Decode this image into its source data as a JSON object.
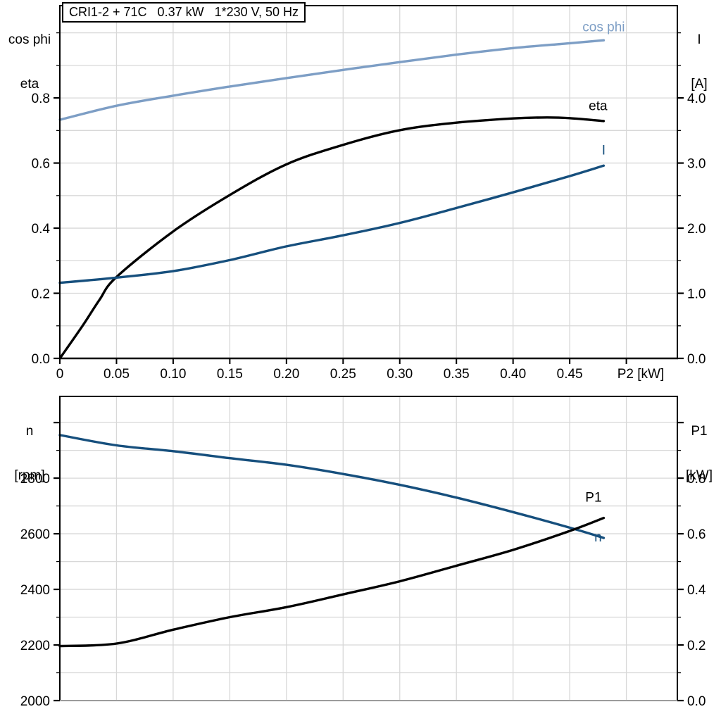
{
  "title": "CRI1-2 + 71C   0.37 kW   1*230 V, 50 Hz",
  "colors": {
    "light_blue": "#7d9ec5",
    "dark_blue": "#164f7d",
    "black": "#000000",
    "grid": "#d8d8d8",
    "frame_gray": "#9c9c9c"
  },
  "chart_data": [
    {
      "id": "top",
      "type": "line",
      "title": "CRI1-2 + 71C   0.37 kW   1*230 V, 50 Hz",
      "xlabel": "P2 [kW]",
      "grid": true,
      "x_range": [
        0,
        0.545
      ],
      "x_grid_step": 0.05,
      "x_majors": [
        {
          "v": 0,
          "label": "0"
        },
        {
          "v": 0.05,
          "label": "0.05"
        },
        {
          "v": 0.1,
          "label": "0.10"
        },
        {
          "v": 0.15,
          "label": "0.15"
        },
        {
          "v": 0.2,
          "label": "0.20"
        },
        {
          "v": 0.25,
          "label": "0.25"
        },
        {
          "v": 0.3,
          "label": "0.30"
        },
        {
          "v": 0.35,
          "label": "0.35"
        },
        {
          "v": 0.4,
          "label": "0.40"
        },
        {
          "v": 0.45,
          "label": "0.45"
        },
        {
          "v": 0.5,
          "label": ""
        }
      ],
      "left_axis": {
        "label_lines": [
          "cos phi",
          "eta"
        ],
        "range": [
          0,
          1.0835
        ],
        "minor_step": 0.1,
        "majors": [
          {
            "v": 0.0,
            "label": "0.0"
          },
          {
            "v": 0.2,
            "label": "0.2"
          },
          {
            "v": 0.4,
            "label": "0.4"
          },
          {
            "v": 0.6,
            "label": "0.6"
          },
          {
            "v": 0.8,
            "label": "0.8"
          }
        ]
      },
      "right_axis": {
        "label_lines": [
          "I",
          "[A]"
        ],
        "range": [
          0,
          5.4175
        ],
        "minor_step": 0.5,
        "majors": [
          {
            "v": 0.0,
            "label": "0.0"
          },
          {
            "v": 1.0,
            "label": "1.0"
          },
          {
            "v": 2.0,
            "label": "2.0"
          },
          {
            "v": 3.0,
            "label": "3.0"
          },
          {
            "v": 4.0,
            "label": "4.0"
          }
        ]
      },
      "series": [
        {
          "name": "cos phi",
          "axis": "left",
          "color": "light_blue",
          "label": "cos phi",
          "label_pos": [
            0.48,
            1.005
          ],
          "points": [
            [
              0,
              0.733
            ],
            [
              0.05,
              0.776
            ],
            [
              0.1,
              0.807
            ],
            [
              0.15,
              0.835
            ],
            [
              0.2,
              0.861
            ],
            [
              0.25,
              0.886
            ],
            [
              0.3,
              0.91
            ],
            [
              0.35,
              0.933
            ],
            [
              0.4,
              0.953
            ],
            [
              0.45,
              0.968
            ],
            [
              0.48,
              0.977
            ]
          ]
        },
        {
          "name": "eta",
          "axis": "left",
          "color": "black",
          "label": "eta",
          "label_pos": [
            0.475,
            0.762
          ],
          "points": [
            [
              0,
              0
            ],
            [
              0.02,
              0.1
            ],
            [
              0.035,
              0.18
            ],
            [
              0.05,
              0.25
            ],
            [
              0.1,
              0.39
            ],
            [
              0.15,
              0.502
            ],
            [
              0.2,
              0.596
            ],
            [
              0.25,
              0.656
            ],
            [
              0.3,
              0.701
            ],
            [
              0.35,
              0.724
            ],
            [
              0.4,
              0.737
            ],
            [
              0.43,
              0.74
            ],
            [
              0.45,
              0.738
            ],
            [
              0.48,
              0.729
            ]
          ]
        },
        {
          "name": "I",
          "axis": "right",
          "color": "dark_blue",
          "label": "I",
          "label_pos": [
            0.48,
            3.13
          ],
          "points": [
            [
              0,
              1.16
            ],
            [
              0.05,
              1.24
            ],
            [
              0.1,
              1.34
            ],
            [
              0.15,
              1.51
            ],
            [
              0.2,
              1.72
            ],
            [
              0.25,
              1.89
            ],
            [
              0.3,
              2.08
            ],
            [
              0.35,
              2.31
            ],
            [
              0.4,
              2.55
            ],
            [
              0.45,
              2.8
            ],
            [
              0.48,
              2.96
            ]
          ]
        }
      ]
    },
    {
      "id": "bottom",
      "type": "line",
      "title": "",
      "xlabel": "",
      "grid": true,
      "x_range": [
        0,
        0.545
      ],
      "x_grid_step": 0.05,
      "x_majors": [],
      "left_axis": {
        "label_lines": [
          "n",
          "[rpm]"
        ],
        "range": [
          2000,
          3094
        ],
        "minor_step": 100,
        "majors": [
          {
            "v": 2000,
            "label": "2000"
          },
          {
            "v": 2200,
            "label": "2200"
          },
          {
            "v": 2400,
            "label": "2400"
          },
          {
            "v": 2600,
            "label": "2600"
          },
          {
            "v": 2800,
            "label": "2800"
          },
          {
            "v": 3000,
            "label": ""
          }
        ]
      },
      "right_axis": {
        "label_lines": [
          "P1",
          "[kW]"
        ],
        "range": [
          0,
          1.094
        ],
        "minor_step": 0.1,
        "majors": [
          {
            "v": 0.0,
            "label": "0.0"
          },
          {
            "v": 0.2,
            "label": "0.2"
          },
          {
            "v": 0.4,
            "label": "0.4"
          },
          {
            "v": 0.6,
            "label": "0.6"
          },
          {
            "v": 0.8,
            "label": "0.8"
          },
          {
            "v": 1.0,
            "label": ""
          }
        ]
      },
      "series": [
        {
          "name": "n",
          "axis": "left",
          "color": "dark_blue",
          "label": "n",
          "label_pos": [
            0.475,
            2572
          ],
          "points": [
            [
              0,
              2955
            ],
            [
              0.05,
              2918
            ],
            [
              0.1,
              2897
            ],
            [
              0.15,
              2872
            ],
            [
              0.2,
              2848
            ],
            [
              0.25,
              2815
            ],
            [
              0.3,
              2776
            ],
            [
              0.35,
              2730
            ],
            [
              0.4,
              2678
            ],
            [
              0.45,
              2622
            ],
            [
              0.48,
              2585
            ]
          ]
        },
        {
          "name": "P1",
          "axis": "right",
          "color": "black",
          "label": "P1",
          "label_pos": [
            0.471,
            0.716
          ],
          "points": [
            [
              0,
              0.196
            ],
            [
              0.05,
              0.205
            ],
            [
              0.1,
              0.255
            ],
            [
              0.15,
              0.3
            ],
            [
              0.2,
              0.336
            ],
            [
              0.25,
              0.382
            ],
            [
              0.3,
              0.429
            ],
            [
              0.35,
              0.485
            ],
            [
              0.4,
              0.542
            ],
            [
              0.45,
              0.61
            ],
            [
              0.48,
              0.657
            ]
          ]
        }
      ]
    }
  ]
}
